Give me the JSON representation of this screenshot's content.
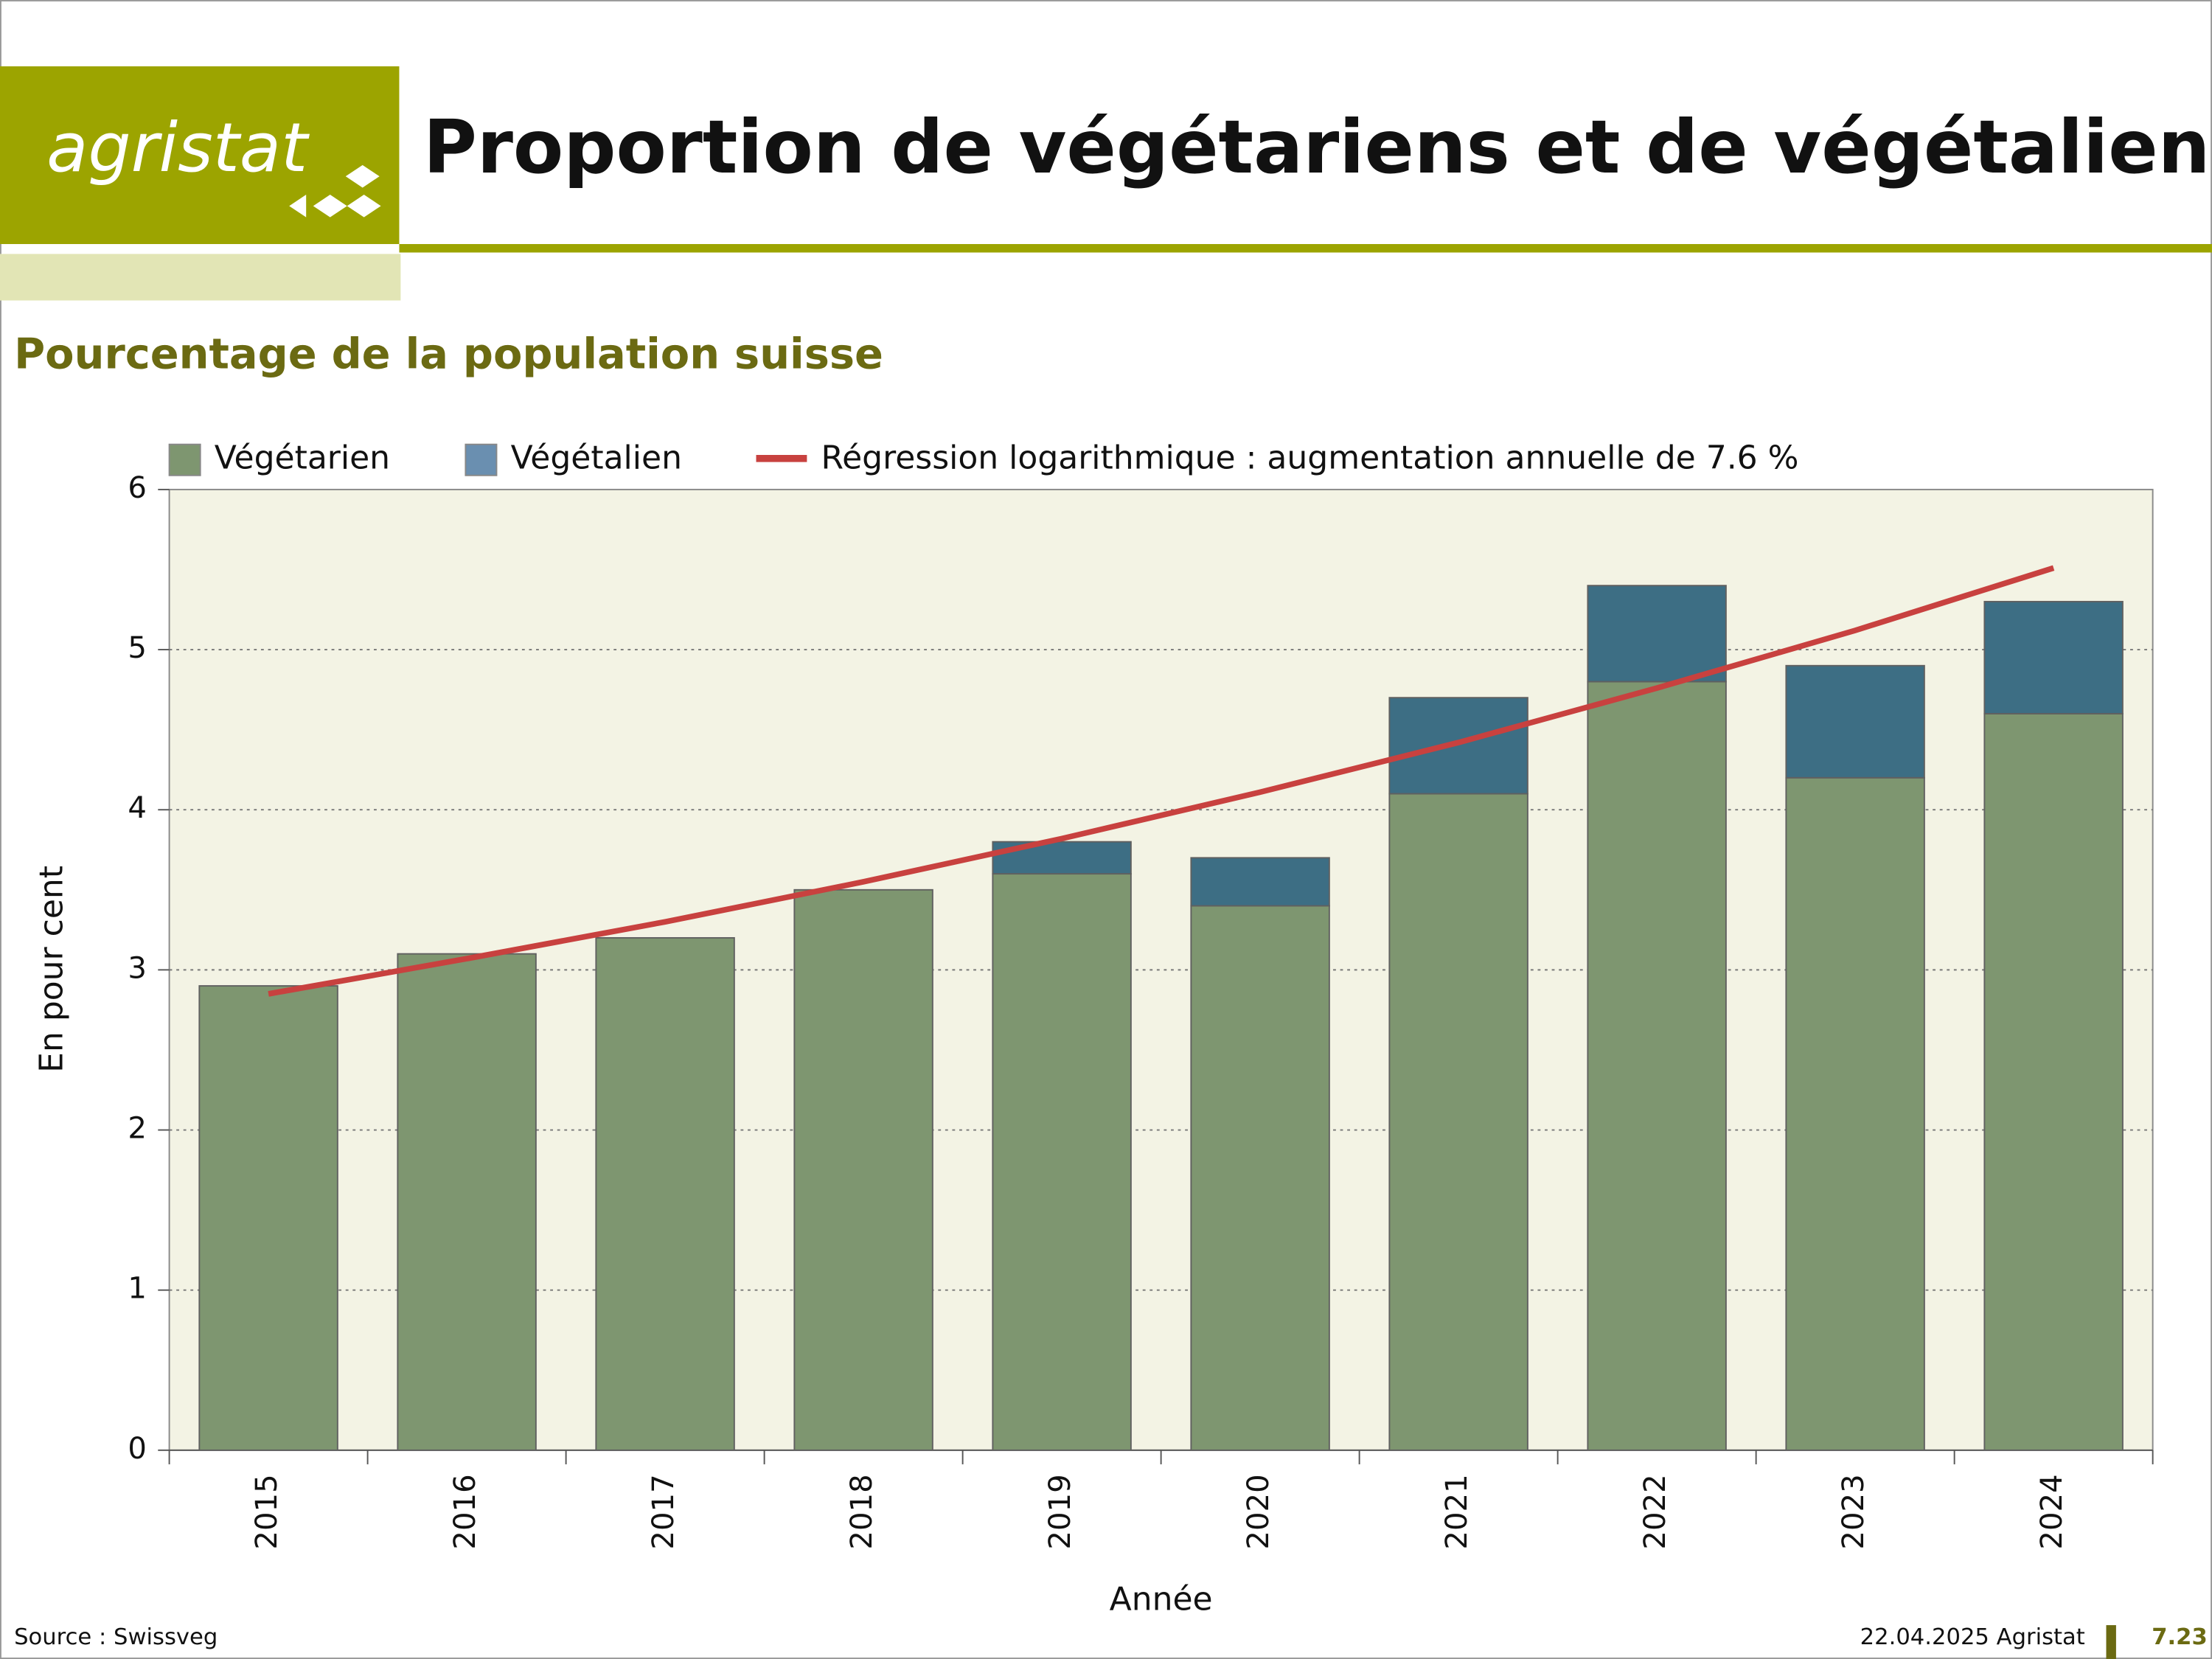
{
  "header": {
    "logo": "agristat",
    "title": "Proportion de végétariens et de végétaliens"
  },
  "footer": {
    "source": "Source : Swissveg",
    "date": "22.04.2025 Agristat",
    "page": "7.23"
  },
  "chart_data": {
    "type": "bar",
    "stacked": true,
    "subtitle": "Pourcentage de la population suisse",
    "y_label": "En pour cent",
    "x_label": "Année",
    "categories": [
      "2015",
      "2016",
      "2017",
      "2018",
      "2019",
      "2020",
      "2021",
      "2022",
      "2023",
      "2024"
    ],
    "series": [
      {
        "name": "Végétarien",
        "color": "#7e9670",
        "values": [
          2.9,
          3.1,
          3.2,
          3.5,
          3.6,
          3.4,
          4.1,
          4.8,
          4.2,
          4.6
        ]
      },
      {
        "name": "Végétalien",
        "color": "#3d6e84",
        "values": [
          0,
          0,
          0,
          0,
          0.2,
          0.3,
          0.6,
          0.6,
          0.7,
          0.7
        ]
      },
      {
        "name": "Régression logarithmique : augmentation annuelle de 7.6 %",
        "type": "line",
        "color": "#c8413f",
        "values": [
          2.85,
          3.07,
          3.3,
          3.55,
          3.82,
          4.11,
          4.42,
          4.76,
          5.12,
          5.51
        ]
      }
    ],
    "ylim": [
      0,
      6
    ],
    "yticks": [
      0,
      1,
      2,
      3,
      4,
      5,
      6
    ],
    "grid": true
  }
}
